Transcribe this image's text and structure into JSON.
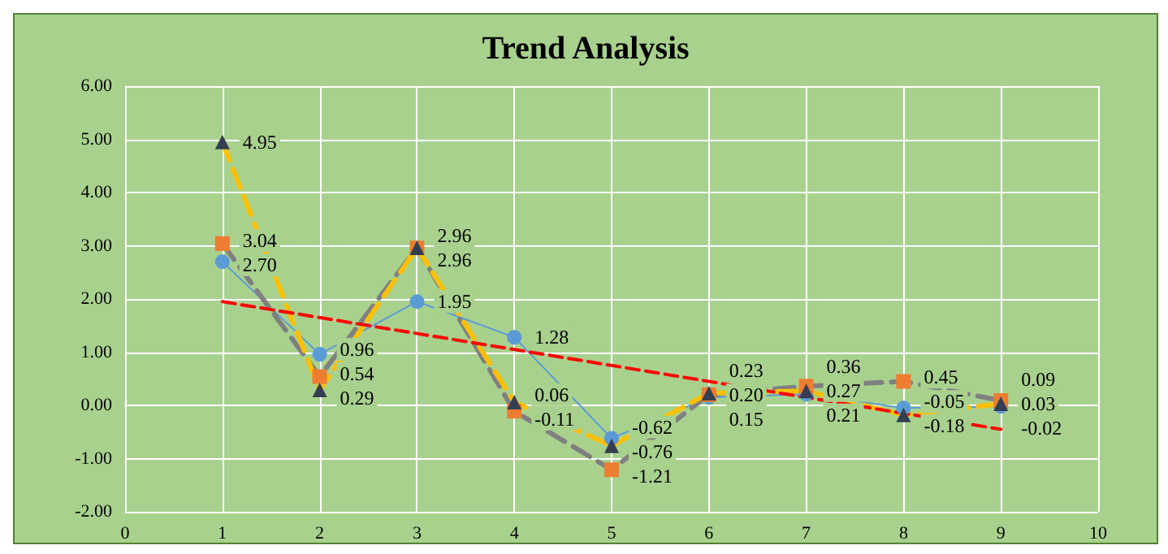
{
  "chart_data": {
    "type": "line",
    "title": "Trend Analysis",
    "x": [
      1,
      2,
      3,
      4,
      5,
      6,
      7,
      8,
      9
    ],
    "xlim": [
      0,
      10
    ],
    "xticks": [
      0,
      1,
      2,
      3,
      4,
      5,
      6,
      7,
      8,
      9,
      10
    ],
    "ylim": [
      -2,
      6
    ],
    "yticks": [
      {
        "value": -2,
        "label": "-2.00"
      },
      {
        "value": -1,
        "label": "-1.00"
      },
      {
        "value": 0,
        "label": "0.00"
      },
      {
        "value": 1,
        "label": "1.00"
      },
      {
        "value": 2,
        "label": "2.00"
      },
      {
        "value": 3,
        "label": "3.00"
      },
      {
        "value": 4,
        "label": "4.00"
      },
      {
        "value": 5,
        "label": "5.00"
      },
      {
        "value": 6,
        "label": "6.00"
      }
    ],
    "grid": true,
    "series": [
      {
        "color": "#5b9bd5",
        "marker": "circle",
        "line_style": "solid",
        "values": [
          2.7,
          0.96,
          1.95,
          1.28,
          -0.62,
          0.15,
          0.21,
          -0.05,
          -0.02
        ],
        "value_labels": [
          "2.70",
          "0.96",
          "1.95",
          "1.28",
          "-0.62",
          "0.15",
          "0.21",
          "-0.05",
          "-0.02"
        ]
      },
      {
        "color": "#808080",
        "colors": [
          "#ed7d31",
          "#ed7d31",
          "#ed7d31",
          "#ed7d31",
          "#ed7d31",
          "#ed7d31",
          "#ed7d31",
          "#ed7d31",
          "#ed7d31"
        ],
        "marker": "square",
        "line_style": "dashed",
        "values": [
          3.04,
          0.54,
          2.96,
          -0.11,
          -1.21,
          0.2,
          0.36,
          0.45,
          0.09
        ],
        "value_labels": [
          "3.04",
          "0.54",
          "2.96",
          "-0.11",
          "-1.21",
          "0.20",
          "0.36",
          "0.45",
          "0.09"
        ]
      },
      {
        "color": "#ffc000",
        "colors": [
          "#333f50",
          "#333f50",
          "#333f50",
          "#333f50",
          "#333f50",
          "#333f50",
          "#333f50",
          "#333f50",
          "#333f50"
        ],
        "marker": "triangle",
        "line_style": "dashed",
        "values": [
          4.95,
          0.29,
          2.96,
          0.06,
          -0.76,
          0.23,
          0.27,
          -0.18,
          0.03
        ],
        "value_labels": [
          "4.95",
          "0.29",
          "2.96",
          "0.06",
          "-0.76",
          "0.23",
          "0.27",
          "-0.18",
          "0.03"
        ]
      },
      {
        "type": "line",
        "color": "#ff0000",
        "marker": "none",
        "line_style": "dashed",
        "x": [
          1,
          9
        ],
        "values": [
          1.95,
          -0.45
        ]
      }
    ]
  }
}
